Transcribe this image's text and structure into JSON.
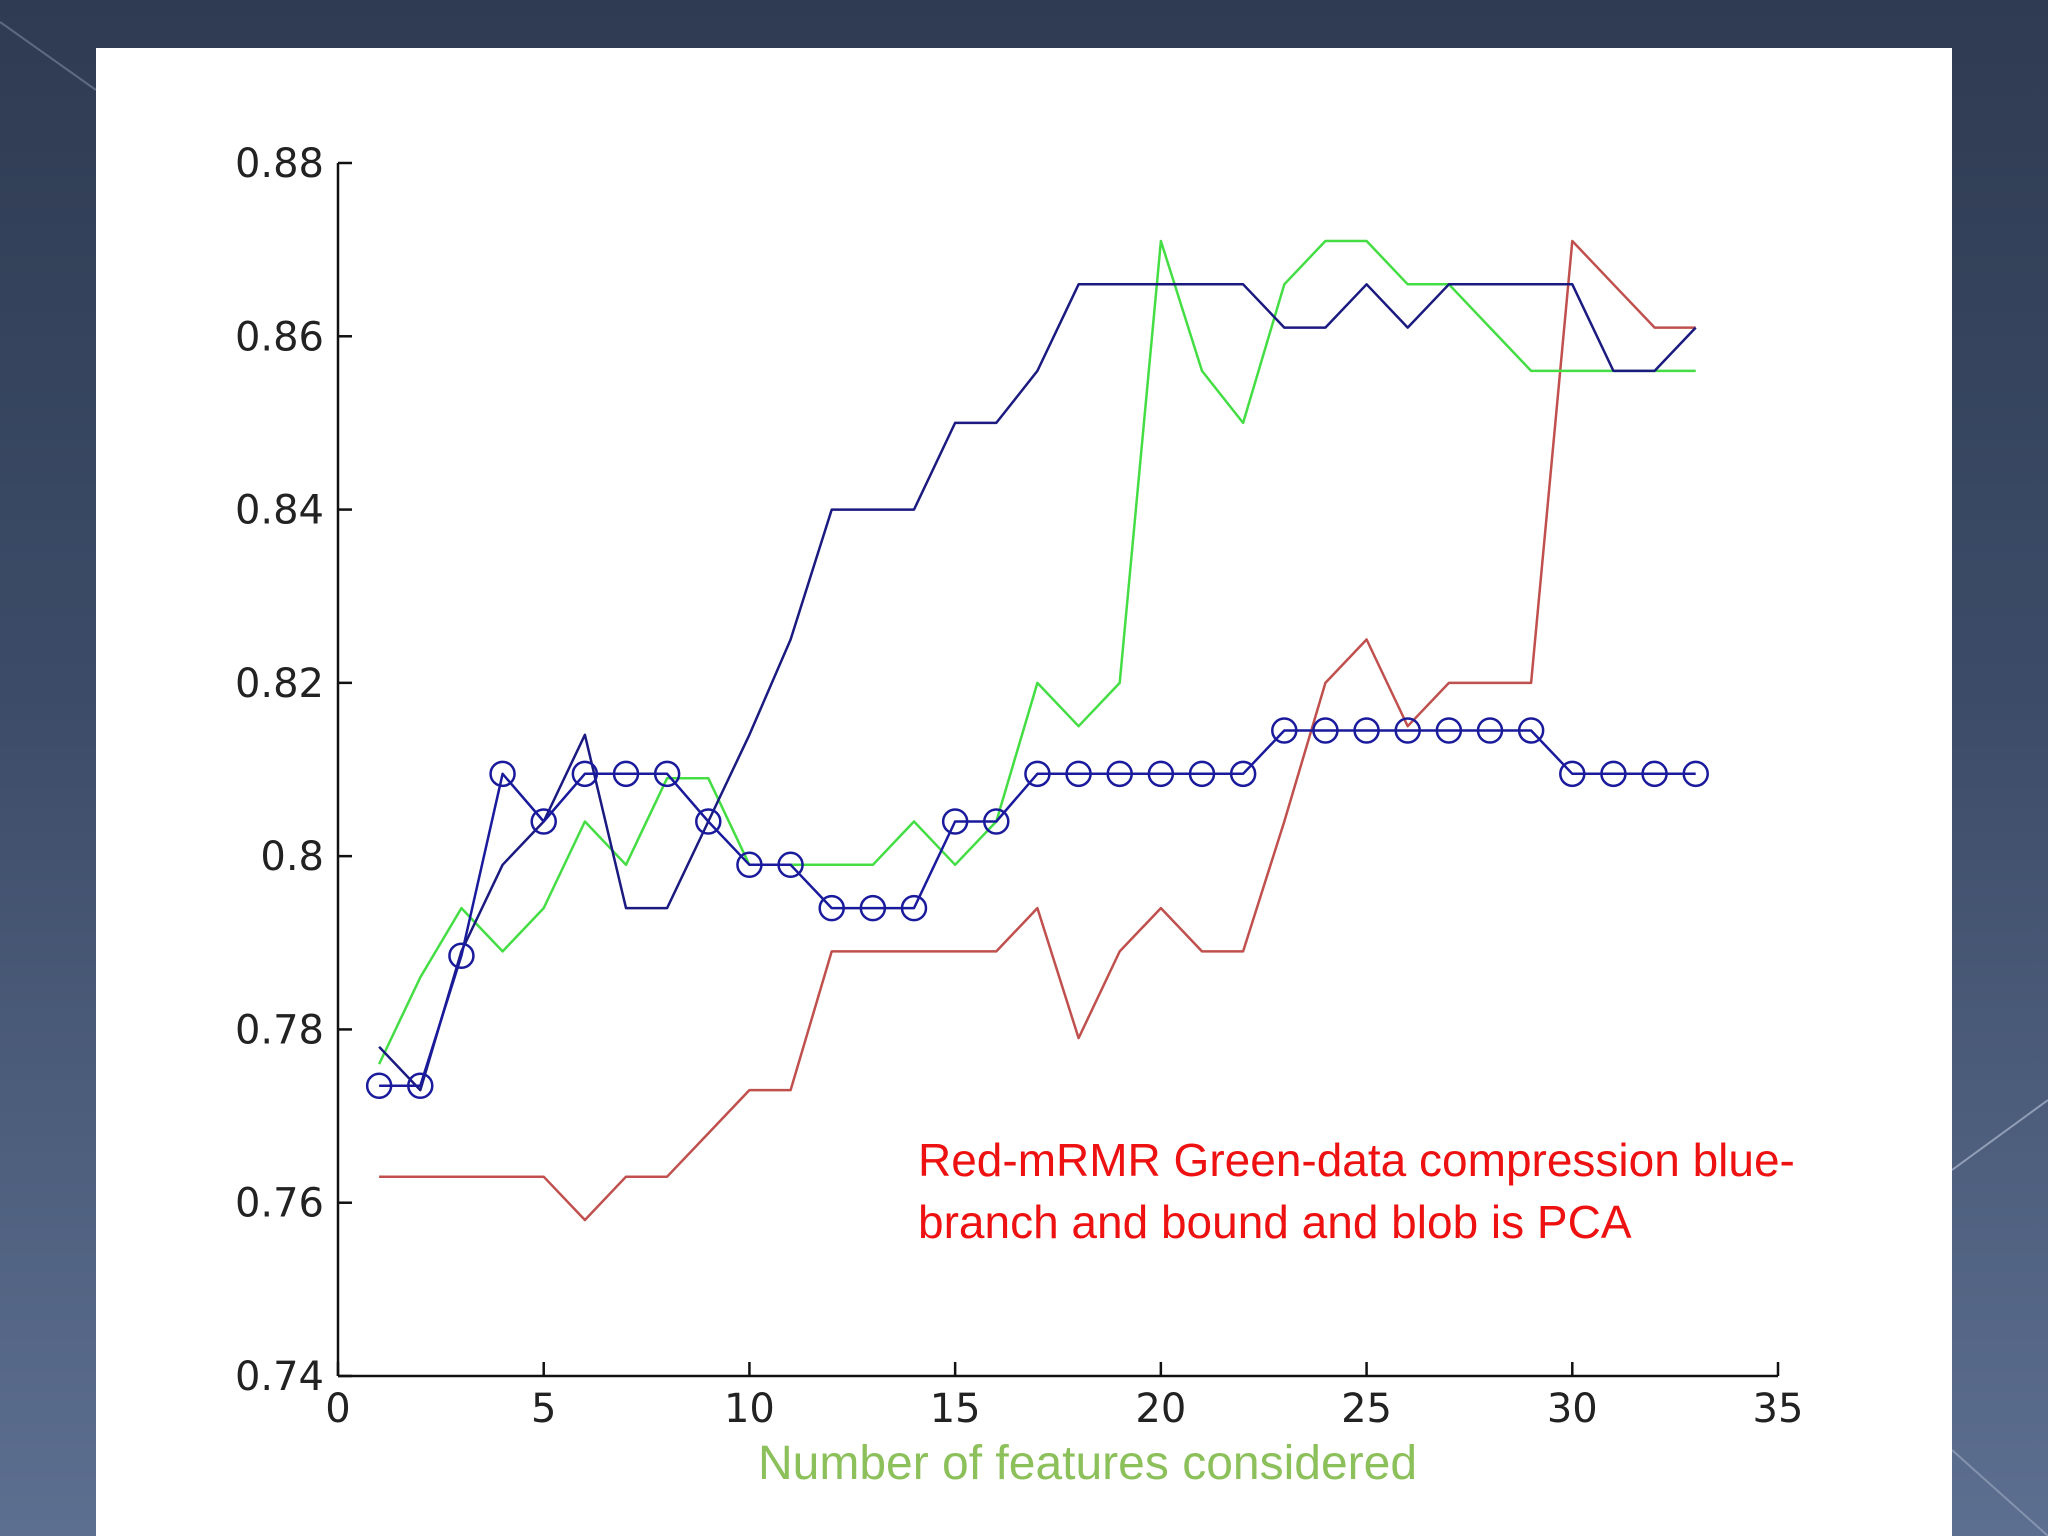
{
  "chart_data": {
    "type": "line",
    "title": "",
    "xlabel": "Number of features considered",
    "ylabel": "",
    "xlim": [
      0,
      35
    ],
    "ylim": [
      0.74,
      0.88
    ],
    "xticks": [
      "0",
      "5",
      "10",
      "15",
      "20",
      "25",
      "30",
      "35"
    ],
    "yticks": [
      "0.74",
      "0.76",
      "0.78",
      "0.8",
      "0.82",
      "0.84",
      "0.86",
      "0.88"
    ],
    "grid": false,
    "legend": "none",
    "annotation": {
      "line1": "Red-mRMR Green-data compression blue-",
      "line2": "branch and bound and blob is PCA"
    },
    "series": [
      {
        "color": "#c0504d",
        "marker": "none",
        "x": [
          1,
          2,
          3,
          4,
          5,
          6,
          7,
          8,
          9,
          10,
          11,
          12,
          13,
          14,
          15,
          16,
          17,
          18,
          19,
          20,
          21,
          22,
          23,
          24,
          25,
          26,
          27,
          28,
          29,
          30,
          31,
          32,
          33
        ],
        "y": [
          0.763,
          0.763,
          0.763,
          0.763,
          0.763,
          0.758,
          0.763,
          0.763,
          0.768,
          0.773,
          0.773,
          0.789,
          0.789,
          0.789,
          0.789,
          0.789,
          0.794,
          0.779,
          0.789,
          0.794,
          0.789,
          0.789,
          0.804,
          0.82,
          0.825,
          0.815,
          0.82,
          0.82,
          0.82,
          0.871,
          0.866,
          0.861,
          0.861
        ]
      },
      {
        "color": "#44dd44",
        "marker": "none",
        "x": [
          1,
          2,
          3,
          4,
          5,
          6,
          7,
          8,
          9,
          10,
          11,
          12,
          13,
          14,
          15,
          16,
          17,
          18,
          19,
          20,
          21,
          22,
          23,
          24,
          25,
          26,
          27,
          28,
          29,
          30,
          31,
          32,
          33
        ],
        "y": [
          0.776,
          0.786,
          0.794,
          0.789,
          0.794,
          0.804,
          0.799,
          0.809,
          0.809,
          0.799,
          0.799,
          0.799,
          0.799,
          0.804,
          0.799,
          0.804,
          0.82,
          0.815,
          0.82,
          0.871,
          0.856,
          0.85,
          0.866,
          0.871,
          0.871,
          0.866,
          0.866,
          0.861,
          0.856,
          0.856,
          0.856,
          0.856,
          0.856
        ]
      },
      {
        "color": "#1a1a80",
        "marker": "none",
        "x": [
          1,
          2,
          3,
          4,
          5,
          6,
          7,
          8,
          9,
          10,
          11,
          12,
          13,
          14,
          15,
          16,
          17,
          18,
          19,
          20,
          21,
          22,
          23,
          24,
          25,
          26,
          27,
          28,
          29,
          30,
          31,
          32,
          33
        ],
        "y": [
          0.778,
          0.773,
          0.789,
          0.799,
          0.804,
          0.814,
          0.794,
          0.794,
          0.804,
          0.814,
          0.825,
          0.84,
          0.84,
          0.84,
          0.85,
          0.85,
          0.856,
          0.866,
          0.866,
          0.866,
          0.866,
          0.866,
          0.861,
          0.861,
          0.866,
          0.861,
          0.866,
          0.866,
          0.866,
          0.866,
          0.856,
          0.856,
          0.861
        ]
      },
      {
        "color": "#1a1a9c",
        "marker": "circle",
        "x": [
          1,
          2,
          3,
          4,
          5,
          6,
          7,
          8,
          9,
          10,
          11,
          12,
          13,
          14,
          15,
          16,
          17,
          18,
          19,
          20,
          21,
          22,
          23,
          24,
          25,
          26,
          27,
          28,
          29,
          30,
          31,
          32,
          33
        ],
        "y": [
          0.7735,
          0.7735,
          0.7885,
          0.8095,
          0.804,
          0.8095,
          0.8095,
          0.8095,
          0.804,
          0.799,
          0.799,
          0.794,
          0.794,
          0.794,
          0.804,
          0.804,
          0.8095,
          0.8095,
          0.8095,
          0.8095,
          0.8095,
          0.8095,
          0.8145,
          0.8145,
          0.8145,
          0.8145,
          0.8145,
          0.8145,
          0.8145,
          0.8095,
          0.8095,
          0.8095,
          0.8095
        ]
      }
    ]
  }
}
